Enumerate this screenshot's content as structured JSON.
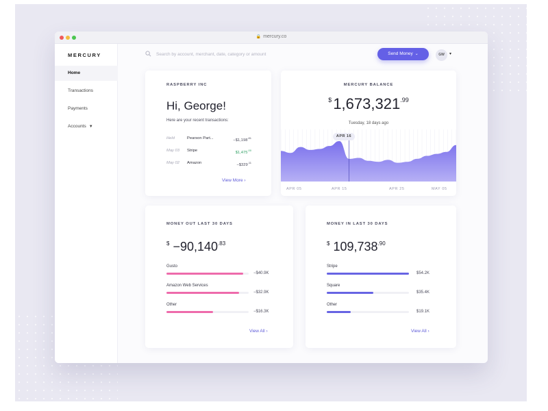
{
  "browser": {
    "url": "mercury.co"
  },
  "sidebar": {
    "logo": "MERCURY",
    "items": [
      {
        "label": "Home",
        "active": true
      },
      {
        "label": "Transactions"
      },
      {
        "label": "Payments"
      },
      {
        "label": "Accounts",
        "caret": "▼"
      }
    ]
  },
  "topbar": {
    "search_placeholder": "Search by account, merchant, date, category or amount",
    "send_money_label": "Send Money",
    "send_money_chevron": "⌄",
    "avatar_initials": "GW",
    "avatar_caret": "▾"
  },
  "account_card": {
    "company": "RASPBERRY INC",
    "greeting": "Hi, George!",
    "subtitle": "Here are your recent transactions:",
    "transactions": [
      {
        "date": "Held",
        "name": "Pearson Part...",
        "amount": "−$1,198",
        "cents": ".81",
        "positive": false
      },
      {
        "date": "May 03",
        "name": "Stripe",
        "amount": "$1,475",
        "cents": ".00",
        "positive": true
      },
      {
        "date": "May 02",
        "name": "Amazon",
        "amount": "−$329",
        "cents": ".11",
        "positive": false
      }
    ],
    "view_more": "View More ›"
  },
  "balance_card": {
    "label": "MERCURY BALANCE",
    "currency": "$",
    "amount": "1,673,321",
    "cents": ".99",
    "date_text": "Tuesday, 18 days ago",
    "marker": "APR 16",
    "x_ticks": [
      "APR 05",
      "APR 15",
      "APR 25",
      "MAY 05"
    ]
  },
  "chart_data": {
    "type": "area",
    "x": [
      "Apr 03",
      "Apr 05",
      "Apr 07",
      "Apr 09",
      "Apr 11",
      "Apr 13",
      "Apr 15",
      "Apr 16",
      "Apr 17",
      "Apr 19",
      "Apr 21",
      "Apr 23",
      "Apr 25",
      "Apr 27",
      "Apr 29",
      "May 01",
      "May 03",
      "May 05",
      "May 07"
    ],
    "values": [
      0.62,
      0.58,
      0.7,
      0.64,
      0.66,
      0.72,
      0.82,
      0.46,
      0.48,
      0.42,
      0.4,
      0.44,
      0.38,
      0.4,
      0.46,
      0.52,
      0.56,
      0.6,
      0.74
    ],
    "ylim": [
      0,
      1
    ],
    "title": "",
    "xlabel": "",
    "ylabel": "",
    "color": "#7c73ec",
    "grid": false
  },
  "money_out": {
    "label": "MONEY OUT LAST 30 DAYS",
    "currency": "$",
    "amount": "−90,140",
    "cents": ".83",
    "color": "#ee6bab",
    "rows": [
      {
        "name": "Gusto",
        "value": "−$40.9K",
        "fraction": 0.93
      },
      {
        "name": "Amazon Web Services",
        "value": "−$32.9K",
        "fraction": 0.88
      },
      {
        "name": "Other",
        "value": "−$16.3K",
        "fraction": 0.57
      }
    ],
    "view_all": "View All ›"
  },
  "money_in": {
    "label": "MONEY IN LAST 30 DAYS",
    "currency": "$",
    "amount": "109,738",
    "cents": ".90",
    "color": "#6764e3",
    "rows": [
      {
        "name": "Stripe",
        "value": "$54.2K",
        "fraction": 1.0
      },
      {
        "name": "Square",
        "value": "$35.4K",
        "fraction": 0.57
      },
      {
        "name": "Other",
        "value": "$19.1K",
        "fraction": 0.29
      }
    ],
    "view_all": "View All ›"
  }
}
